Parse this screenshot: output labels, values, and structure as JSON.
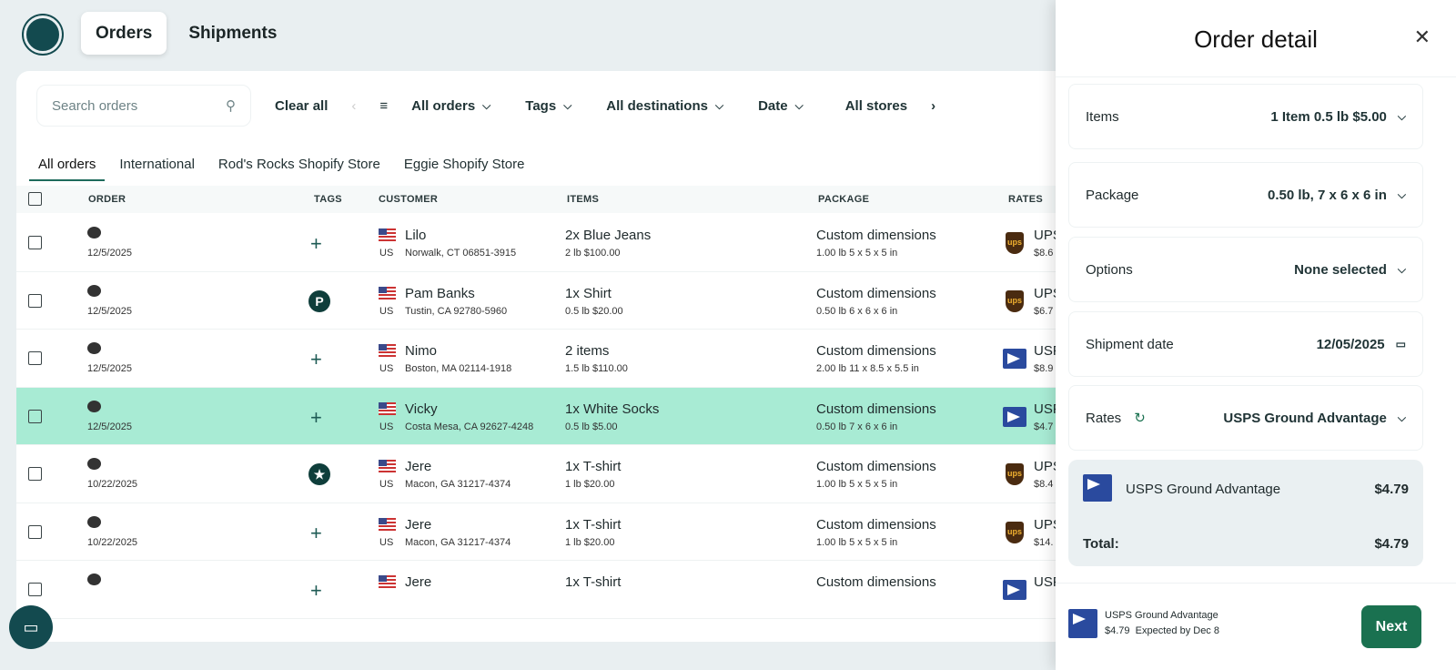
{
  "nav": {
    "tabs": [
      "Orders",
      "Shipments"
    ]
  },
  "filters": {
    "search_placeholder": "Search orders",
    "clear_all": "Clear all",
    "dropdowns": [
      "All orders",
      "Tags",
      "All destinations",
      "Date",
      "All stores"
    ]
  },
  "subtabs": [
    "All orders",
    "International",
    "Rod's Rocks Shopify Store",
    "Eggie Shopify Store"
  ],
  "columns": {
    "order": "ORDER",
    "tags": "TAGS",
    "customer": "CUSTOMER",
    "items": "ITEMS",
    "package": "PACKAGE",
    "rates": "RATES"
  },
  "rows": [
    {
      "date": "12/5/2025",
      "tag": "+",
      "name": "Lilo",
      "country": "US",
      "address": "Norwalk, CT 06851-3915",
      "items": "2x Blue Jeans",
      "items_detail": "2 lb  $100.00",
      "package": "Custom dimensions",
      "package_detail": "1.00 lb 5 x 5 x 5 in",
      "carrier": "ups",
      "rate": "UPS",
      "price": "$8.6"
    },
    {
      "date": "12/5/2025",
      "tag": "P",
      "name": "Pam Banks",
      "country": "US",
      "address": "Tustin, CA 92780-5960",
      "items": "1x Shirt",
      "items_detail": "0.5 lb  $20.00",
      "package": "Custom dimensions",
      "package_detail": "0.50 lb 6 x 6 x 6 in",
      "carrier": "ups",
      "rate": "UPS",
      "price": "$6.7"
    },
    {
      "date": "12/5/2025",
      "tag": "+",
      "name": "Nimo",
      "country": "US",
      "address": "Boston, MA 02114-1918",
      "items": "2 items",
      "items_detail": "1.5 lb  $110.00",
      "package": "Custom dimensions",
      "package_detail": "2.00 lb 11 x 8.5 x 5.5 in",
      "carrier": "usps",
      "rate": "USPS",
      "price": "$8.9"
    },
    {
      "date": "12/5/2025",
      "tag": "+",
      "name": "Vicky",
      "country": "US",
      "address": "Costa Mesa, CA 92627-4248",
      "items": "1x White Socks",
      "items_detail": "0.5 lb  $5.00",
      "package": "Custom dimensions",
      "package_detail": "0.50 lb 7 x 6 x 6 in",
      "carrier": "usps",
      "rate": "USPS",
      "price": "$4.7",
      "selected": true
    },
    {
      "date": "10/22/2025",
      "tag": "★",
      "name": "Jere",
      "country": "US",
      "address": "Macon, GA 31217-4374",
      "items": "1x T-shirt",
      "items_detail": "1 lb  $20.00",
      "package": "Custom dimensions",
      "package_detail": "1.00 lb 5 x 5 x 5 in",
      "carrier": "ups",
      "rate": "UPS",
      "price": "$8.4"
    },
    {
      "date": "10/22/2025",
      "tag": "+",
      "name": "Jere",
      "country": "US",
      "address": "Macon, GA 31217-4374",
      "items": "1x T-shirt",
      "items_detail": "1 lb  $20.00",
      "package": "Custom dimensions",
      "package_detail": "1.00 lb 5 x 5 x 5 in",
      "carrier": "ups",
      "rate": "UPS",
      "price": "$14."
    },
    {
      "date": "",
      "tag": "+",
      "name": "Jere",
      "country": "",
      "address": "",
      "items": "1x T-shirt",
      "items_detail": "",
      "package": "Custom dimensions",
      "package_detail": "",
      "carrier": "usps",
      "rate": "USPS",
      "price": ""
    }
  ],
  "panel": {
    "title": "Order detail",
    "sections": [
      {
        "label": "Items",
        "value": "1 Item  0.5 lb  $5.00"
      },
      {
        "label": "Package",
        "value": "0.50 lb, 7 x 6 x 6 in"
      },
      {
        "label": "Options",
        "value": "None selected"
      },
      {
        "label": "Shipment date",
        "value": "12/05/2025"
      },
      {
        "label": "Rates",
        "value": "USPS Ground Advantage"
      }
    ],
    "summary": {
      "service": "USPS Ground Advantage",
      "price": "$4.79",
      "total_label": "Total:",
      "total": "$4.79"
    },
    "footer": {
      "service": "USPS Ground Advantage",
      "price": "$4.79",
      "expected": "Expected by Dec 8",
      "next": "Next"
    }
  },
  "colors": {
    "accent": "#1a7150",
    "selected_row": "#a8ebd4",
    "brand": "#134a4f"
  }
}
